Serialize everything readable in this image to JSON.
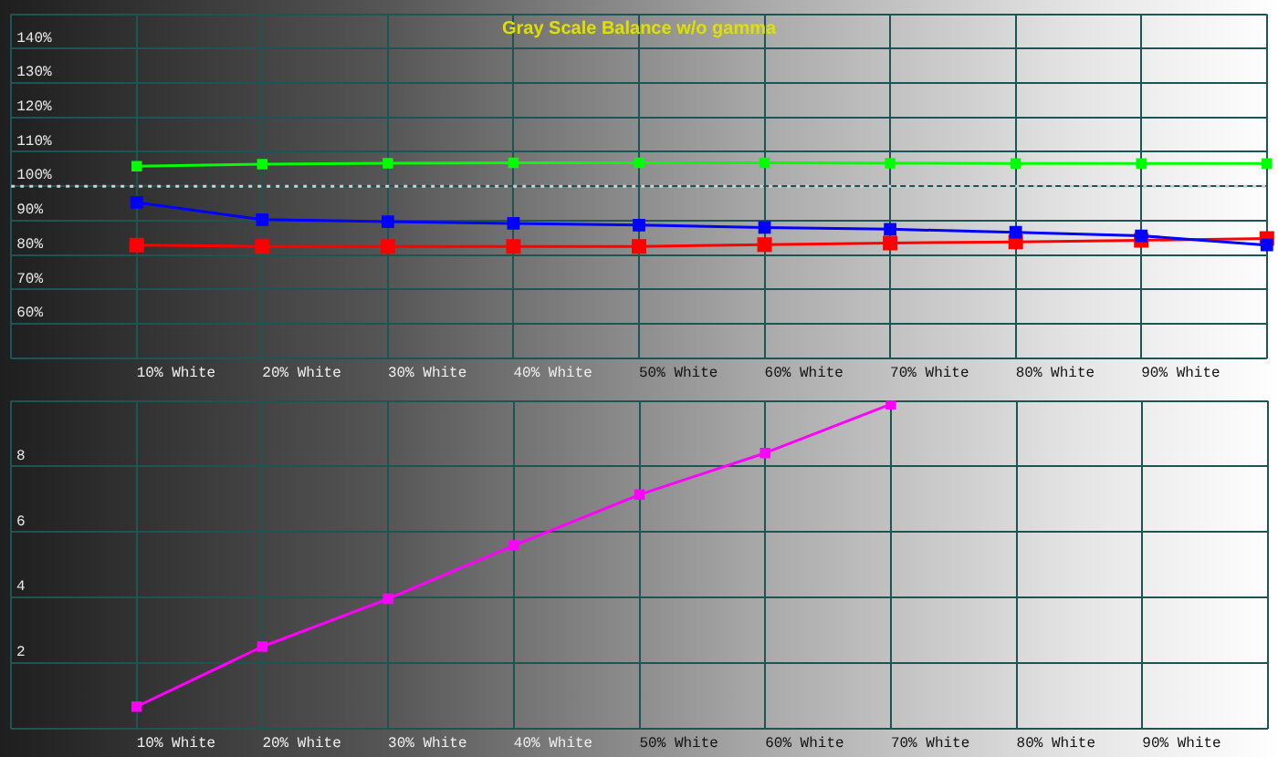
{
  "chart_data": [
    {
      "type": "line",
      "title": "Gray Scale Balance w/o gamma",
      "categories": [
        null,
        "10% White",
        "20% White",
        "30% White",
        "40% White",
        "50% White",
        "60% White",
        "70% White",
        "80% White",
        "90% White",
        null
      ],
      "series": [
        {
          "color": "#00ff00",
          "values": [
            null,
            105.8,
            106.4,
            106.7,
            106.8,
            106.8,
            106.8,
            106.7,
            106.6,
            106.6,
            106.6
          ]
        },
        {
          "color": "#0000ff",
          "values": [
            null,
            95.3,
            90.3,
            89.7,
            89.2,
            88.7,
            88.0,
            87.5,
            86.6,
            85.6,
            82.9
          ]
        },
        {
          "color": "#ff0000",
          "values": [
            null,
            82.9,
            82.5,
            82.5,
            82.5,
            82.5,
            83.0,
            83.5,
            83.8,
            84.3,
            84.8
          ]
        }
      ],
      "ylim": [
        50,
        150
      ],
      "yticks": [
        {
          "value": 50,
          "label": null
        },
        {
          "value": 60,
          "label": "60%"
        },
        {
          "value": 70,
          "label": "70%"
        },
        {
          "value": 80,
          "label": "80%"
        },
        {
          "value": 90,
          "label": "90%"
        },
        {
          "value": 100,
          "label": "100%"
        },
        {
          "value": 110,
          "label": "110%"
        },
        {
          "value": 120,
          "label": "120%"
        },
        {
          "value": 130,
          "label": "130%"
        },
        {
          "value": 140,
          "label": "140%"
        },
        {
          "value": 150,
          "label": null
        }
      ],
      "ref_lines": [
        {
          "axis": "y",
          "value": 100,
          "color": "#d0d0d0",
          "line_style": "dotted"
        }
      ],
      "grid": true,
      "marker": "square",
      "line_style": "solid",
      "legend": false
    },
    {
      "type": "line",
      "categories": [
        null,
        "10% White",
        "20% White",
        "30% White",
        "40% White",
        "50% White",
        "60% White",
        "70% White",
        "80% White",
        "90% White",
        null
      ],
      "series": [
        {
          "color": "#ff00ff",
          "values": [
            null,
            0.67,
            2.5,
            3.96,
            5.59,
            7.14,
            8.41,
            9.9,
            null,
            null,
            null
          ]
        }
      ],
      "ylim": [
        0,
        10
      ],
      "yticks": [
        {
          "value": 0,
          "label": null
        },
        2,
        4,
        6,
        8,
        {
          "value": 10,
          "label": null
        }
      ],
      "grid": true,
      "marker": "square",
      "line_style": "solid",
      "legend": false
    }
  ]
}
